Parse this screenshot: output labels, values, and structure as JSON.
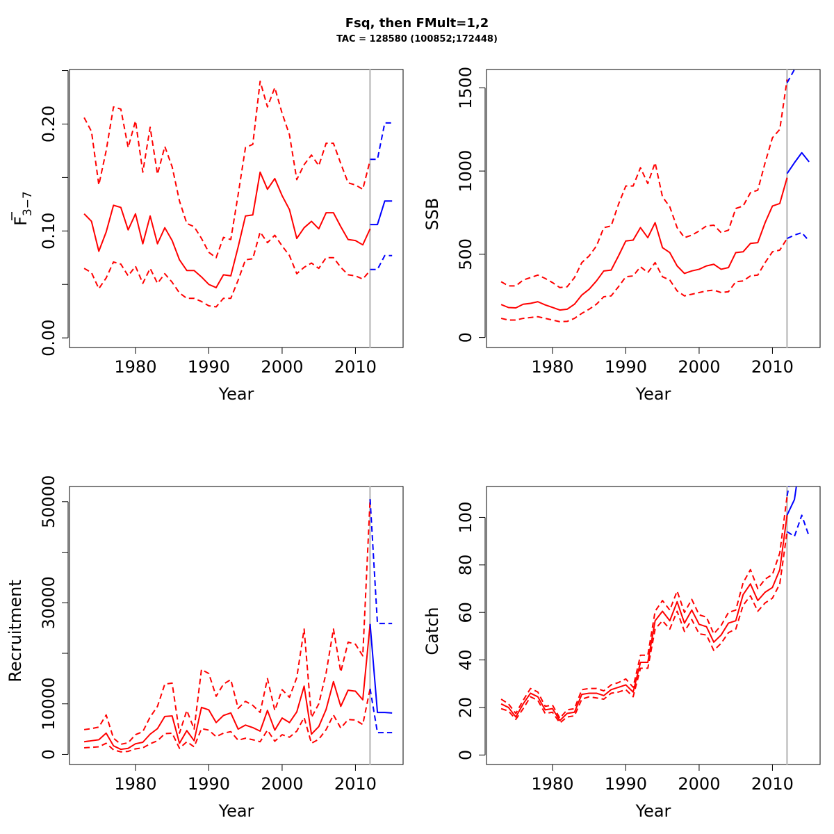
{
  "title": "Fsq, then FMult=1,2",
  "subtitle": "TAC = 128580 (100852;172448)",
  "colors": {
    "historic": "#ff0000",
    "forecast": "#0000ff",
    "ref_line": "#cccccc"
  },
  "chart_data": [
    {
      "type": "line",
      "panel": "F",
      "xlabel": "Year",
      "ylabel_main": "F",
      "ylabel_sub": "3−7",
      "ylabel_overbar": true,
      "xlim": [
        1971,
        2016.5
      ],
      "ylim": [
        -0.009,
        0.251
      ],
      "xticks": [
        1980,
        1990,
        2000,
        2010
      ],
      "yticks": [
        0.0,
        0.05,
        0.1,
        0.15,
        0.2,
        0.25
      ],
      "ytick_labels": [
        "0.00",
        "",
        "0.10",
        "",
        "0.20",
        ""
      ],
      "ref_year": 2012,
      "historic_years": [
        1973,
        1974,
        1975,
        1976,
        1977,
        1978,
        1979,
        1980,
        1981,
        1982,
        1983,
        1984,
        1985,
        1986,
        1987,
        1988,
        1989,
        1990,
        1991,
        1992,
        1993,
        1994,
        1995,
        1996,
        1997,
        1998,
        1999,
        2000,
        2001,
        2002,
        2003,
        2004,
        2005,
        2006,
        2007,
        2008,
        2009,
        2010,
        2011,
        2012
      ],
      "historic": {
        "mid": [
          0.116,
          0.109,
          0.081,
          0.099,
          0.124,
          0.122,
          0.101,
          0.116,
          0.088,
          0.114,
          0.088,
          0.103,
          0.091,
          0.073,
          0.063,
          0.063,
          0.057,
          0.05,
          0.047,
          0.059,
          0.058,
          0.085,
          0.114,
          0.115,
          0.155,
          0.139,
          0.149,
          0.133,
          0.12,
          0.093,
          0.103,
          0.109,
          0.102,
          0.117,
          0.117,
          0.104,
          0.092,
          0.091,
          0.087,
          0.102
        ],
        "upper": [
          0.206,
          0.193,
          0.143,
          0.175,
          0.216,
          0.214,
          0.178,
          0.203,
          0.155,
          0.197,
          0.153,
          0.179,
          0.16,
          0.128,
          0.107,
          0.104,
          0.093,
          0.08,
          0.075,
          0.094,
          0.092,
          0.134,
          0.178,
          0.181,
          0.24,
          0.216,
          0.234,
          0.21,
          0.19,
          0.148,
          0.162,
          0.171,
          0.161,
          0.182,
          0.182,
          0.163,
          0.145,
          0.143,
          0.139,
          0.166
        ],
        "lower": [
          0.065,
          0.061,
          0.046,
          0.056,
          0.071,
          0.069,
          0.058,
          0.067,
          0.051,
          0.065,
          0.051,
          0.06,
          0.052,
          0.042,
          0.037,
          0.037,
          0.034,
          0.03,
          0.029,
          0.037,
          0.037,
          0.054,
          0.073,
          0.074,
          0.099,
          0.089,
          0.096,
          0.086,
          0.077,
          0.06,
          0.066,
          0.07,
          0.065,
          0.075,
          0.075,
          0.066,
          0.059,
          0.058,
          0.055,
          0.063
        ]
      },
      "forecast_years": [
        2012,
        2013,
        2014,
        2015
      ],
      "forecast": {
        "mid": [
          0.106,
          0.106,
          0.128,
          0.128
        ],
        "upper": [
          0.167,
          0.167,
          0.201,
          0.201
        ],
        "lower": [
          0.064,
          0.064,
          0.077,
          0.077
        ]
      }
    },
    {
      "type": "line",
      "panel": "SSB",
      "xlabel": "Year",
      "ylabel": "SSB",
      "xlim": [
        1971,
        2016.5
      ],
      "ylim": [
        -60,
        1610
      ],
      "xticks": [
        1980,
        1990,
        2000,
        2010
      ],
      "yticks": [
        0,
        500,
        1000,
        1500
      ],
      "ytick_labels": [
        "0",
        "500",
        "1000",
        "1500"
      ],
      "ref_year": 2012,
      "historic_years": [
        1973,
        1974,
        1975,
        1976,
        1977,
        1978,
        1979,
        1980,
        1981,
        1982,
        1983,
        1984,
        1985,
        1986,
        1987,
        1988,
        1989,
        1990,
        1991,
        1992,
        1993,
        1994,
        1995,
        1996,
        1997,
        1998,
        1999,
        2000,
        2001,
        2002,
        2003,
        2004,
        2005,
        2006,
        2007,
        2008,
        2009,
        2010,
        2011,
        2012
      ],
      "historic": {
        "mid": [
          198,
          180,
          178,
          200,
          205,
          215,
          196,
          181,
          165,
          170,
          200,
          255,
          290,
          340,
          400,
          405,
          490,
          580,
          585,
          660,
          600,
          690,
          540,
          510,
          430,
          385,
          400,
          410,
          430,
          440,
          410,
          420,
          510,
          515,
          565,
          570,
          690,
          790,
          805,
          960
        ],
        "upper": [
          335,
          310,
          310,
          345,
          360,
          375,
          355,
          330,
          300,
          305,
          360,
          450,
          490,
          550,
          660,
          670,
          800,
          910,
          910,
          1020,
          925,
          1050,
          845,
          785,
          660,
          600,
          615,
          640,
          670,
          675,
          630,
          645,
          775,
          790,
          870,
          885,
          1050,
          1200,
          1250,
          1550
        ],
        "lower": [
          115,
          105,
          105,
          115,
          120,
          125,
          115,
          105,
          95,
          97,
          115,
          145,
          170,
          200,
          245,
          250,
          305,
          365,
          370,
          425,
          390,
          450,
          365,
          345,
          280,
          250,
          260,
          270,
          280,
          285,
          270,
          275,
          335,
          340,
          370,
          375,
          450,
          515,
          525,
          595
        ]
      },
      "forecast_years": [
        2012,
        2013,
        2014,
        2015
      ],
      "forecast": {
        "mid": [
          985,
          1050,
          1110,
          1055
        ],
        "upper": [
          1530,
          1610,
          1700,
          1650
        ],
        "lower": [
          595,
          615,
          630,
          580
        ]
      }
    },
    {
      "type": "line",
      "panel": "Recruitment",
      "xlabel": "Year",
      "ylabel": "Recruitment",
      "xlim": [
        1971,
        2016.5
      ],
      "ylim": [
        -2000,
        53000
      ],
      "xticks": [
        1980,
        1990,
        2000,
        2010
      ],
      "yticks": [
        0,
        10000,
        20000,
        30000,
        40000,
        50000
      ],
      "ytick_labels": [
        "0",
        "10000",
        "",
        "30000",
        "",
        "50000"
      ],
      "ref_year": 2012,
      "historic_years": [
        1973,
        1974,
        1975,
        1976,
        1977,
        1978,
        1979,
        1980,
        1981,
        1982,
        1983,
        1984,
        1985,
        1986,
        1987,
        1988,
        1989,
        1990,
        1991,
        1992,
        1993,
        1994,
        1995,
        1996,
        1997,
        1998,
        1999,
        2000,
        2001,
        2002,
        2003,
        2004,
        2005,
        2006,
        2007,
        2008,
        2009,
        2010,
        2011,
        2012
      ],
      "historic": {
        "mid": [
          2500,
          2700,
          2900,
          4200,
          1700,
          1000,
          1200,
          2100,
          2400,
          4000,
          5100,
          7500,
          7600,
          2200,
          4700,
          2700,
          9300,
          8800,
          6300,
          7700,
          8200,
          5000,
          5800,
          5300,
          4600,
          8700,
          4800,
          7200,
          6300,
          8400,
          13500,
          4000,
          5500,
          8900,
          14400,
          9500,
          12700,
          12500,
          10800,
          25800
        ],
        "upper": [
          4900,
          5100,
          5400,
          7800,
          3200,
          2000,
          2300,
          3900,
          4500,
          7400,
          9500,
          13900,
          14100,
          4200,
          8700,
          5000,
          16800,
          16000,
          11500,
          13900,
          14800,
          9100,
          10500,
          9700,
          8300,
          15000,
          8700,
          12800,
          11300,
          15200,
          24800,
          7300,
          10000,
          16100,
          24800,
          16300,
          22200,
          21800,
          19500,
          50500
        ],
        "lower": [
          1300,
          1400,
          1500,
          2200,
          900,
          500,
          600,
          1100,
          1300,
          2100,
          2700,
          4100,
          4200,
          1200,
          2500,
          1500,
          5100,
          4800,
          3500,
          4200,
          4500,
          2800,
          3200,
          2900,
          2500,
          4800,
          2600,
          3900,
          3400,
          4600,
          7300,
          2200,
          3000,
          4900,
          7800,
          5200,
          6900,
          6800,
          5900,
          13000
        ]
      },
      "forecast_years": [
        2012,
        2013,
        2014,
        2015
      ],
      "forecast": {
        "mid": [
          25800,
          8300,
          8300,
          8200
        ],
        "upper": [
          50500,
          25900,
          25900,
          25900
        ],
        "lower": [
          13000,
          4300,
          4300,
          4300
        ]
      }
    },
    {
      "type": "line",
      "panel": "Catch",
      "xlabel": "Year",
      "ylabel": "Catch",
      "xlim": [
        1971,
        2016.5
      ],
      "ylim": [
        -4,
        113
      ],
      "xticks": [
        1980,
        1990,
        2000,
        2010
      ],
      "yticks": [
        0,
        20,
        40,
        60,
        80,
        100
      ],
      "ytick_labels": [
        "0",
        "20",
        "40",
        "60",
        "80",
        "100"
      ],
      "ref_year": 2012,
      "historic_years": [
        1973,
        1974,
        1975,
        1976,
        1977,
        1978,
        1979,
        1980,
        1981,
        1982,
        1983,
        1984,
        1985,
        1986,
        1987,
        1988,
        1989,
        1990,
        1991,
        1992,
        1993,
        1994,
        1995,
        1996,
        1997,
        1998,
        1999,
        2000,
        2001,
        2002,
        2003,
        2004,
        2005,
        2006,
        2007,
        2008,
        2009,
        2010,
        2011,
        2012
      ],
      "historic": {
        "mid": [
          21.5,
          20.0,
          16.0,
          21.5,
          26.0,
          24.5,
          19.0,
          19.5,
          14.5,
          17.5,
          18.0,
          25.5,
          26.0,
          26.0,
          25.0,
          27.5,
          28.5,
          29.5,
          26.5,
          39.0,
          39.0,
          56.5,
          60.5,
          56.5,
          64.5,
          55.5,
          61.0,
          55.0,
          54.0,
          47.5,
          50.5,
          55.5,
          56.5,
          67.5,
          72.0,
          65.0,
          68.5,
          70.5,
          78.0,
          101.0
        ],
        "upper": [
          23.5,
          21.5,
          17.5,
          23.0,
          28.0,
          26.5,
          20.5,
          21.0,
          15.5,
          19.0,
          19.5,
          27.5,
          28.0,
          28.0,
          27.0,
          29.5,
          30.5,
          32.0,
          28.5,
          42.0,
          42.0,
          60.5,
          65.0,
          61.0,
          69.0,
          60.0,
          65.5,
          59.0,
          58.0,
          51.0,
          54.5,
          60.0,
          61.0,
          72.5,
          78.0,
          70.0,
          74.0,
          76.0,
          85.0,
          109.0
        ],
        "lower": [
          19.5,
          18.5,
          15.0,
          19.5,
          24.5,
          23.0,
          17.5,
          18.0,
          13.5,
          16.0,
          16.5,
          23.5,
          24.5,
          24.0,
          23.5,
          26.0,
          26.5,
          27.5,
          24.5,
          36.5,
          36.5,
          53.0,
          56.5,
          53.0,
          60.5,
          52.0,
          57.0,
          51.0,
          50.5,
          44.0,
          47.0,
          51.5,
          53.0,
          63.0,
          67.0,
          60.5,
          64.0,
          66.0,
          72.0,
          94.0
        ]
      },
      "forecast_years": [
        2012,
        2013,
        2014,
        2015
      ],
      "forecast": {
        "mid": [
          101.0,
          107.5,
          128.6,
          140.0
        ],
        "upper": [
          109.0,
          126.0,
          172.4,
          190.0
        ],
        "lower": [
          94.0,
          92.0,
          100.9,
          92.0
        ]
      }
    }
  ]
}
